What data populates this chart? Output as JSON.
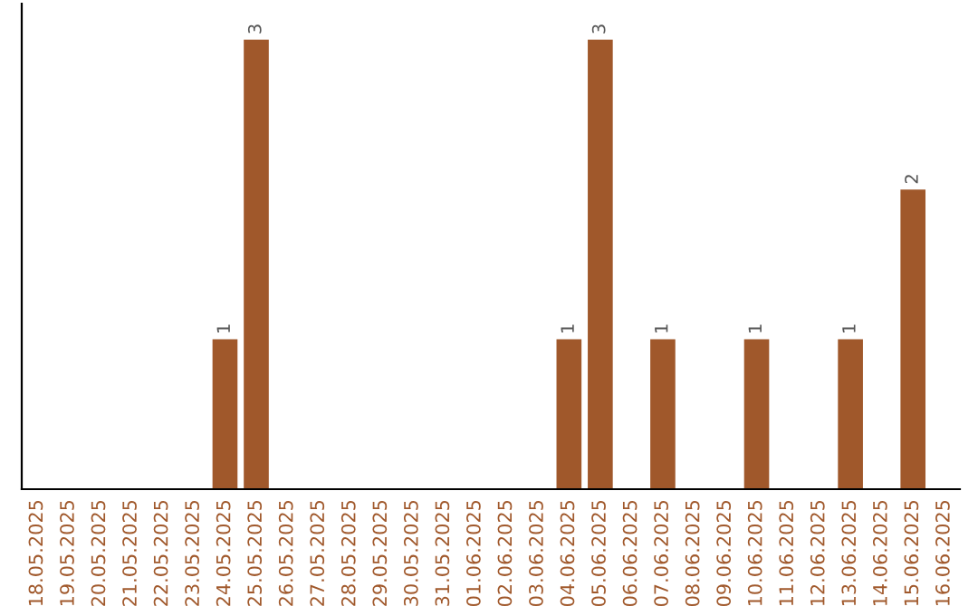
{
  "chart_data": {
    "type": "bar",
    "categories": [
      "18.05.2025",
      "19.05.2025",
      "20.05.2025",
      "21.05.2025",
      "22.05.2025",
      "23.05.2025",
      "24.05.2025",
      "25.05.2025",
      "26.05.2025",
      "27.05.2025",
      "28.05.2025",
      "29.05.2025",
      "30.05.2025",
      "31.05.2025",
      "01.06.2025",
      "02.06.2025",
      "03.06.2025",
      "04.06.2025",
      "05.06.2025",
      "06.06.2025",
      "07.06.2025",
      "08.06.2025",
      "09.06.2025",
      "10.06.2025",
      "11.06.2025",
      "12.06.2025",
      "13.06.2025",
      "14.06.2025",
      "15.06.2025",
      "16.06.2025"
    ],
    "values": [
      0,
      0,
      0,
      0,
      0,
      0,
      1,
      3,
      0,
      0,
      0,
      0,
      0,
      0,
      0,
      0,
      0,
      1,
      3,
      0,
      1,
      0,
      0,
      1,
      0,
      0,
      1,
      0,
      2,
      0
    ],
    "value_labels": [
      null,
      null,
      null,
      null,
      null,
      null,
      "1",
      "3",
      null,
      null,
      null,
      null,
      null,
      null,
      null,
      null,
      null,
      "1",
      "3",
      null,
      "1",
      null,
      null,
      "1",
      null,
      null,
      "1",
      null,
      "2",
      null
    ],
    "color": "#a0582b",
    "tick_labels": "x",
    "grid": false,
    "legend": false
  }
}
